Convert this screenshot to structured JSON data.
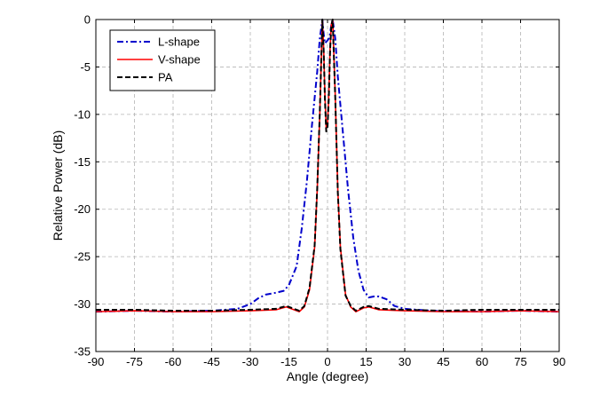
{
  "chart_data": {
    "type": "line",
    "title": "",
    "xlabel": "Angle (degree)",
    "ylabel": "Relative Power (dB)",
    "xlim": [
      -90,
      90
    ],
    "ylim": [
      -35,
      0
    ],
    "xticks": [
      -90,
      -75,
      -60,
      -45,
      -30,
      -15,
      0,
      15,
      30,
      45,
      60,
      75,
      90
    ],
    "yticks": [
      0,
      -5,
      -10,
      -15,
      -20,
      -25,
      -30,
      -35
    ],
    "grid": true,
    "legend_position": "top-left",
    "series": [
      {
        "name": "L-shape",
        "color": "#0000cc",
        "style": "dash-dot",
        "points": [
          [
            -90,
            -30.8
          ],
          [
            -75,
            -30.7
          ],
          [
            -60,
            -30.8
          ],
          [
            -45,
            -30.7
          ],
          [
            -35,
            -30.5
          ],
          [
            -30,
            -30.0
          ],
          [
            -27,
            -29.4
          ],
          [
            -24,
            -29.0
          ],
          [
            -20,
            -28.8
          ],
          [
            -17,
            -28.6
          ],
          [
            -15,
            -28.0
          ],
          [
            -12,
            -26.0
          ],
          [
            -10,
            -22.0
          ],
          [
            -8,
            -17.0
          ],
          [
            -6,
            -11.0
          ],
          [
            -4,
            -5.5
          ],
          [
            -3,
            -2.0
          ],
          [
            -2,
            0
          ],
          [
            -1.5,
            -1.5
          ],
          [
            -1,
            -2.5
          ],
          [
            0,
            -2.2
          ],
          [
            0.5,
            -2.0
          ],
          [
            1,
            -1.5
          ],
          [
            1.5,
            -0.5
          ],
          [
            2,
            0
          ],
          [
            3,
            -2.0
          ],
          [
            4,
            -6.0
          ],
          [
            6,
            -12.0
          ],
          [
            8,
            -18.0
          ],
          [
            10,
            -23.0
          ],
          [
            12,
            -26.5
          ],
          [
            14,
            -28.5
          ],
          [
            16,
            -29.3
          ],
          [
            18,
            -29.2
          ],
          [
            20,
            -29.2
          ],
          [
            23,
            -29.5
          ],
          [
            26,
            -30.2
          ],
          [
            30,
            -30.5
          ],
          [
            40,
            -30.7
          ],
          [
            60,
            -30.8
          ],
          [
            75,
            -30.7
          ],
          [
            90,
            -30.8
          ]
        ]
      },
      {
        "name": "V-shape",
        "color": "#ff0000",
        "style": "solid",
        "points": [
          [
            -90,
            -30.8
          ],
          [
            -75,
            -30.7
          ],
          [
            -60,
            -30.8
          ],
          [
            -45,
            -30.8
          ],
          [
            -30,
            -30.7
          ],
          [
            -20,
            -30.6
          ],
          [
            -16,
            -30.3
          ],
          [
            -14,
            -30.5
          ],
          [
            -11,
            -30.8
          ],
          [
            -9,
            -30.3
          ],
          [
            -7,
            -28.5
          ],
          [
            -5,
            -24.0
          ],
          [
            -4,
            -18.0
          ],
          [
            -3,
            -10.0
          ],
          [
            -2,
            0
          ],
          [
            -1.5,
            -3.0
          ],
          [
            -1,
            -8.0
          ],
          [
            -0.5,
            -11.5
          ],
          [
            0,
            -11.0
          ],
          [
            0.5,
            -8.0
          ],
          [
            1,
            -3.0
          ],
          [
            1.5,
            -0.5
          ],
          [
            2,
            0
          ],
          [
            3,
            -8.0
          ],
          [
            4,
            -18.0
          ],
          [
            5,
            -24.0
          ],
          [
            7,
            -29.0
          ],
          [
            9,
            -30.3
          ],
          [
            11,
            -30.8
          ],
          [
            14,
            -30.4
          ],
          [
            16,
            -30.3
          ],
          [
            20,
            -30.6
          ],
          [
            30,
            -30.7
          ],
          [
            45,
            -30.8
          ],
          [
            60,
            -30.8
          ],
          [
            75,
            -30.7
          ],
          [
            90,
            -30.8
          ]
        ]
      },
      {
        "name": "PA",
        "color": "#000000",
        "style": "dashed",
        "points": [
          [
            -90,
            -30.6
          ],
          [
            -75,
            -30.6
          ],
          [
            -60,
            -30.7
          ],
          [
            -45,
            -30.7
          ],
          [
            -30,
            -30.6
          ],
          [
            -20,
            -30.5
          ],
          [
            -16,
            -30.2
          ],
          [
            -14,
            -30.4
          ],
          [
            -11,
            -30.7
          ],
          [
            -9,
            -30.2
          ],
          [
            -7,
            -28.3
          ],
          [
            -5,
            -23.8
          ],
          [
            -4,
            -17.8
          ],
          [
            -3,
            -9.8
          ],
          [
            -2,
            0
          ],
          [
            -1.5,
            -3.2
          ],
          [
            -1,
            -8.5
          ],
          [
            -0.5,
            -11.8
          ],
          [
            0,
            -11.3
          ],
          [
            0.5,
            -8.3
          ],
          [
            1,
            -3.2
          ],
          [
            1.5,
            -0.6
          ],
          [
            2,
            0
          ],
          [
            3,
            -8.2
          ],
          [
            4,
            -18.2
          ],
          [
            5,
            -24.2
          ],
          [
            7,
            -29.1
          ],
          [
            9,
            -30.2
          ],
          [
            11,
            -30.7
          ],
          [
            14,
            -30.3
          ],
          [
            16,
            -30.2
          ],
          [
            20,
            -30.5
          ],
          [
            30,
            -30.6
          ],
          [
            45,
            -30.7
          ],
          [
            60,
            -30.6
          ],
          [
            75,
            -30.6
          ],
          [
            90,
            -30.6
          ]
        ]
      }
    ]
  }
}
